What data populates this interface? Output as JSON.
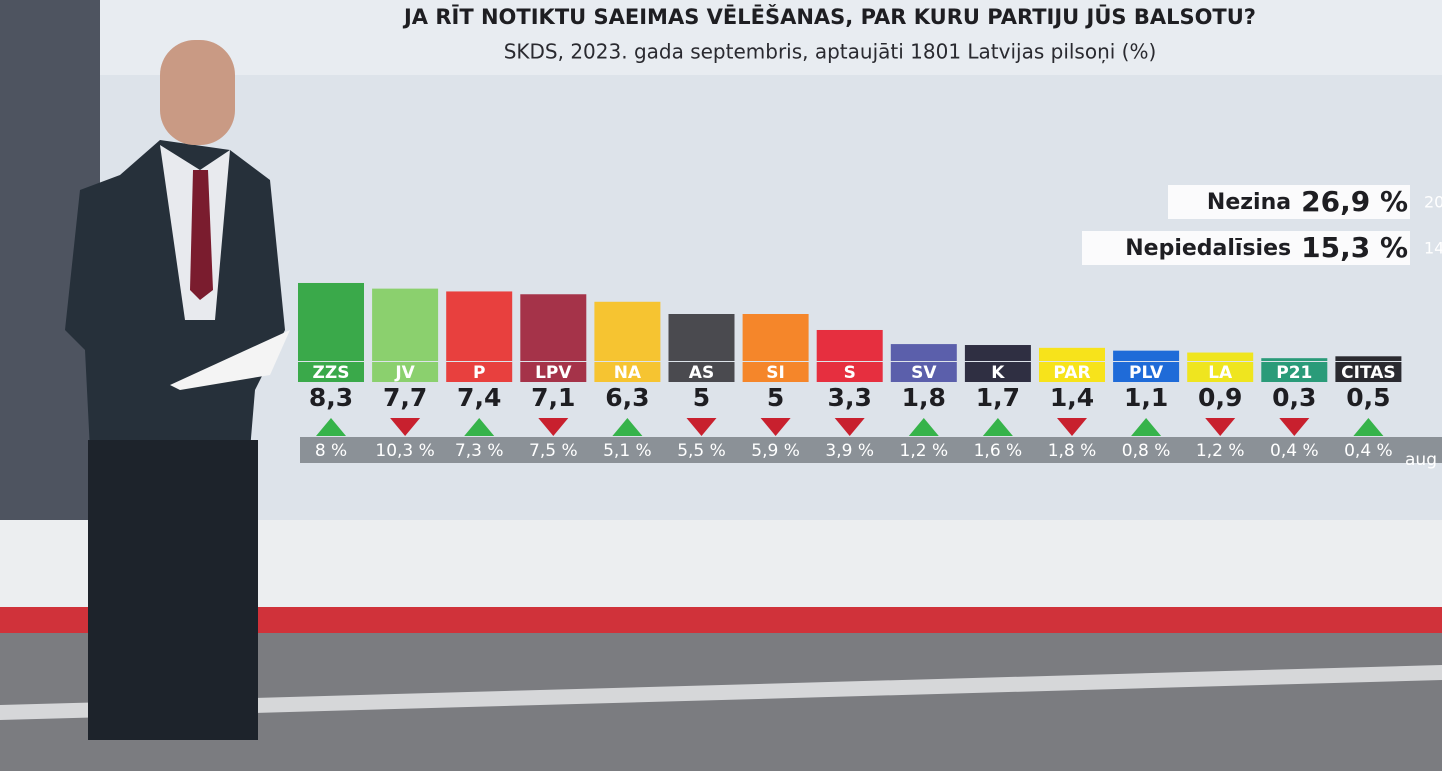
{
  "chart_data": {
    "type": "bar",
    "title": "JA RĪT NOTIKTU SAEIMAS VĒLĒŠANAS, PAR KURU PARTIJU JŪS BALSOTU?",
    "subtitle": "SKDS, 2023. gada septembris, aptaujāti 1801 Latvijas pilsoņi (%)",
    "categories": [
      "ZZS",
      "JV",
      "P",
      "LPV",
      "NA",
      "AS",
      "SI",
      "S",
      "SV",
      "K",
      "PAR",
      "PLV",
      "LA",
      "P21",
      "CITAS"
    ],
    "values": [
      8.3,
      7.7,
      7.4,
      7.1,
      6.3,
      5,
      5,
      3.3,
      1.8,
      1.7,
      1.4,
      1.1,
      0.9,
      0.3,
      0.5
    ],
    "value_labels": [
      "8,3",
      "7,7",
      "7,4",
      "7,1",
      "6,3",
      "5",
      "5",
      "3,3",
      "1,8",
      "1,7",
      "1,4",
      "1,1",
      "0,9",
      "0,3",
      "0,5"
    ],
    "colors": [
      "#3aa94a",
      "#8bd06e",
      "#e8403e",
      "#a53349",
      "#f6c431",
      "#4a4a4f",
      "#f5862a",
      "#e62f3f",
      "#5b5fab",
      "#2f2f42",
      "#f7e31b",
      "#1f6bd8",
      "#efe51f",
      "#2a9b79",
      "#2a2a30"
    ],
    "previous_values": [
      8,
      10.3,
      7.3,
      7.5,
      5.1,
      5.5,
      5.9,
      3.9,
      1.2,
      1.6,
      1.8,
      0.8,
      1.2,
      0.4,
      0.4
    ],
    "previous_labels": [
      "8 %",
      "10,3 %",
      "7,3 %",
      "7,5 %",
      "5,1 %",
      "5,5 %",
      "5,9 %",
      "3,9 %",
      "1,2 %",
      "1,6 %",
      "1,8 %",
      "0,8 %",
      "1,2 %",
      "0,4 %",
      "0,4 %"
    ],
    "previous_period": "aug",
    "extras": [
      {
        "label": "Nezina",
        "value": 26.9,
        "value_label": "26,9 %",
        "previous_label": "20"
      },
      {
        "label": "Nepiedalīsies",
        "value": 15.3,
        "value_label": "15,3 %",
        "previous_label": "14"
      }
    ]
  }
}
